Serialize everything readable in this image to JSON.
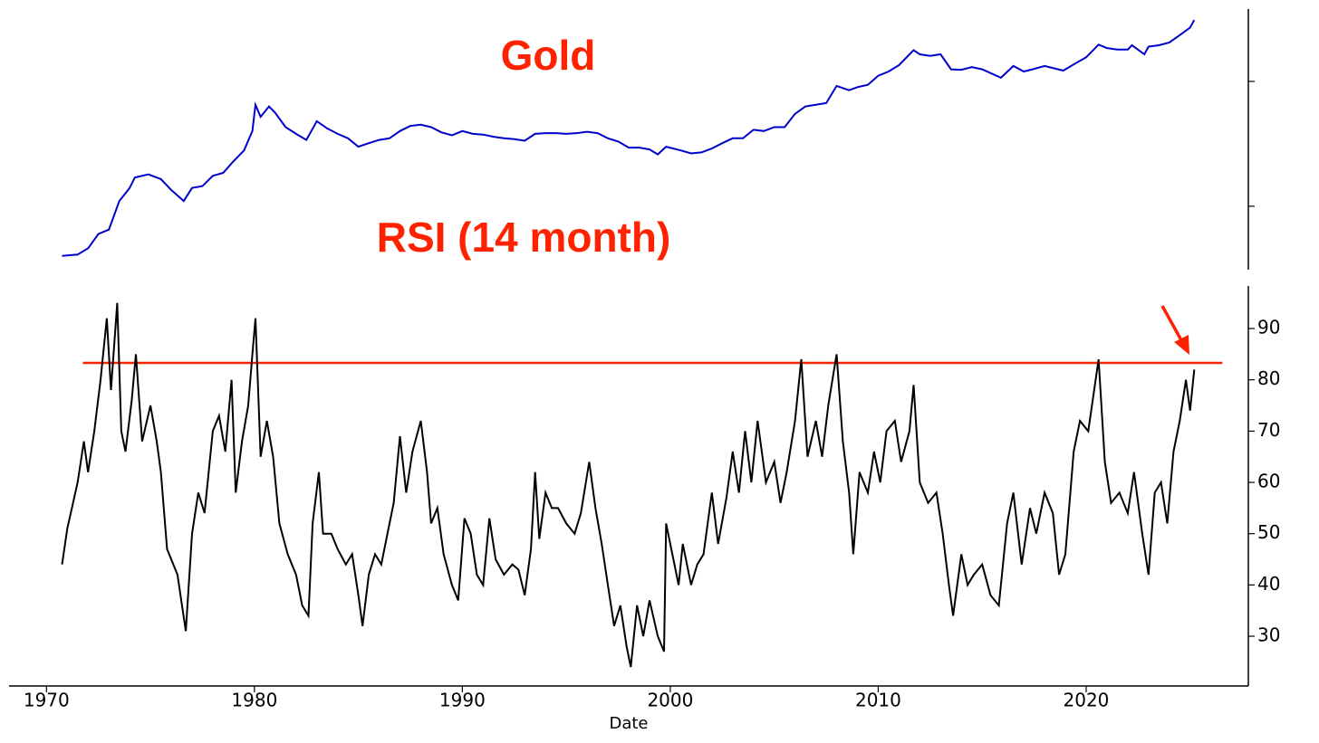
{
  "chart_data": [
    {
      "type": "line",
      "title": "Gold",
      "log": true,
      "xlim": [
        1968.2,
        2027.8
      ],
      "ylim": [
        31,
        3800
      ],
      "yticks": [
        100,
        1000
      ],
      "x": [
        1970.75,
        1971.5,
        1972,
        1972.5,
        1973,
        1973.5,
        1974,
        1974.25,
        1974.9,
        1975.5,
        1976.0,
        1976.6,
        1977,
        1977.5,
        1978,
        1978.5,
        1979,
        1979.5,
        1979.9,
        1980.05,
        1980.3,
        1980.7,
        1981,
        1981.5,
        1982,
        1982.5,
        1983,
        1983.5,
        1984,
        1984.5,
        1985,
        1985.5,
        1986,
        1986.5,
        1987,
        1987.5,
        1988,
        1988.5,
        1989,
        1989.5,
        1990,
        1990.5,
        1991,
        1991.5,
        1992,
        1992.5,
        1993,
        1993.5,
        1994,
        1994.5,
        1995,
        1995.5,
        1996,
        1996.5,
        1997,
        1997.5,
        1998,
        1998.5,
        1999,
        1999.4,
        1999.8,
        2000.5,
        2001,
        2001.5,
        2002,
        2002.5,
        2003,
        2003.5,
        2004,
        2004.5,
        2005,
        2005.5,
        2006,
        2006.5,
        2007,
        2007.5,
        2008,
        2008.6,
        2009,
        2009.5,
        2010,
        2010.5,
        2011,
        2011.7,
        2012,
        2012.5,
        2013,
        2013.5,
        2014,
        2014.5,
        2015,
        2015.9,
        2016.5,
        2017,
        2017.5,
        2018,
        2018.9,
        2019.5,
        2020,
        2020.6,
        2021,
        2021.5,
        2022,
        2022.2,
        2022.8,
        2023,
        2023.5,
        2024,
        2024.5,
        2025,
        2025.2
      ],
      "series": [
        {
          "color": "#0000cc",
          "values": [
            40,
            41,
            46,
            60,
            65,
            110,
            140,
            170,
            180,
            165,
            135,
            110,
            140,
            145,
            175,
            185,
            230,
            280,
            400,
            650,
            520,
            630,
            560,
            430,
            380,
            340,
            480,
            420,
            380,
            350,
            300,
            320,
            340,
            350,
            400,
            440,
            450,
            430,
            390,
            370,
            400,
            380,
            375,
            360,
            350,
            345,
            335,
            380,
            385,
            385,
            380,
            385,
            395,
            385,
            350,
            330,
            295,
            295,
            285,
            260,
            300,
            280,
            265,
            270,
            290,
            320,
            350,
            350,
            410,
            400,
            430,
            430,
            550,
            630,
            650,
            670,
            920,
            850,
            900,
            940,
            1110,
            1200,
            1350,
            1780,
            1650,
            1600,
            1650,
            1250,
            1240,
            1300,
            1250,
            1070,
            1330,
            1200,
            1260,
            1330,
            1220,
            1400,
            1560,
            1970,
            1850,
            1800,
            1800,
            1950,
            1650,
            1900,
            1950,
            2050,
            2350,
            2700,
            3100
          ]
        }
      ]
    },
    {
      "type": "line",
      "title": "RSI (14 month)",
      "xlabel": "Date",
      "xlim": [
        1968.2,
        2027.8
      ],
      "xticks": [
        1970,
        1980,
        1990,
        2000,
        2010,
        2020
      ],
      "ylim": [
        20.3,
        98.3
      ],
      "yticks": [
        30,
        40,
        50,
        60,
        70,
        80,
        90
      ],
      "hline": {
        "y": 83.3,
        "x": [
          1971.75,
          2026.55
        ],
        "color": "#ff2200"
      },
      "x": [
        1970.75,
        1971,
        1971.5,
        1971.8,
        1972,
        1972.3,
        1972.6,
        1972.9,
        1973.1,
        1973.4,
        1973.6,
        1973.8,
        1974.1,
        1974.3,
        1974.6,
        1975,
        1975.3,
        1975.5,
        1975.8,
        1976,
        1976.3,
        1976.7,
        1977,
        1977.3,
        1977.6,
        1978,
        1978.3,
        1978.6,
        1978.9,
        1979.1,
        1979.4,
        1979.7,
        1979.9,
        1980.05,
        1980.3,
        1980.6,
        1980.9,
        1981.2,
        1981.6,
        1982,
        1982.3,
        1982.6,
        1982.8,
        1983.1,
        1983.3,
        1983.7,
        1984,
        1984.4,
        1984.7,
        1985,
        1985.2,
        1985.5,
        1985.8,
        1986.1,
        1986.4,
        1986.7,
        1987,
        1987.3,
        1987.6,
        1988,
        1988.3,
        1988.5,
        1988.8,
        1989.1,
        1989.5,
        1989.8,
        1990.1,
        1990.4,
        1990.7,
        1991,
        1991.3,
        1991.6,
        1992,
        1992.4,
        1992.7,
        1993,
        1993.3,
        1993.5,
        1993.7,
        1994,
        1994.3,
        1994.6,
        1995,
        1995.4,
        1995.7,
        1996.1,
        1996.4,
        1996.7,
        1997,
        1997.3,
        1997.6,
        1997.9,
        1998.1,
        1998.4,
        1998.7,
        1999,
        1999.4,
        1999.7,
        1999.8,
        2000.1,
        2000.4,
        2000.6,
        2001,
        2001.3,
        2001.6,
        2002,
        2002.3,
        2002.7,
        2003,
        2003.3,
        2003.6,
        2003.9,
        2004.2,
        2004.6,
        2005,
        2005.3,
        2005.6,
        2006,
        2006.3,
        2006.6,
        2007,
        2007.3,
        2007.6,
        2008,
        2008.3,
        2008.6,
        2008.8,
        2009.1,
        2009.5,
        2009.8,
        2010.1,
        2010.4,
        2010.8,
        2011.1,
        2011.5,
        2011.7,
        2012,
        2012.4,
        2012.8,
        2013.1,
        2013.4,
        2013.6,
        2014,
        2014.3,
        2014.6,
        2015,
        2015.4,
        2015.8,
        2016.2,
        2016.5,
        2016.9,
        2017.3,
        2017.6,
        2018,
        2018.4,
        2018.7,
        2019,
        2019.4,
        2019.7,
        2020.1,
        2020.6,
        2020.9,
        2021.2,
        2021.6,
        2022,
        2022.3,
        2022.7,
        2023,
        2023.3,
        2023.6,
        2023.9,
        2024.2,
        2024.5,
        2024.8,
        2025,
        2025.2
      ],
      "series": [
        {
          "color": "#000000",
          "values": [
            44,
            51,
            60,
            68,
            62,
            70,
            80,
            92,
            78,
            95,
            70,
            66,
            76,
            85,
            68,
            75,
            68,
            62,
            47,
            45,
            42,
            31,
            50,
            58,
            54,
            70,
            73,
            66,
            80,
            58,
            68,
            75,
            85,
            92,
            65,
            72,
            65,
            52,
            46,
            42,
            36,
            34,
            52,
            62,
            50,
            50,
            47,
            44,
            46,
            38,
            32,
            42,
            46,
            44,
            50,
            56,
            69,
            58,
            66,
            72,
            62,
            52,
            55,
            46,
            40,
            37,
            53,
            50,
            42,
            40,
            53,
            45,
            42,
            44,
            43,
            38,
            47,
            62,
            49,
            58,
            55,
            55,
            52,
            50,
            54,
            64,
            55,
            48,
            40,
            32,
            36,
            28,
            24,
            36,
            30,
            37,
            30,
            27,
            52,
            46,
            40,
            48,
            40,
            44,
            46,
            58,
            48,
            57,
            66,
            58,
            70,
            60,
            72,
            60,
            64,
            56,
            62,
            72,
            84,
            65,
            72,
            65,
            75,
            85,
            68,
            58,
            46,
            62,
            58,
            66,
            60,
            70,
            72,
            64,
            70,
            79,
            60,
            56,
            58,
            50,
            40,
            34,
            46,
            40,
            42,
            44,
            38,
            36,
            52,
            58,
            44,
            55,
            50,
            58,
            54,
            42,
            46,
            66,
            72,
            70,
            84,
            64,
            56,
            58,
            54,
            62,
            50,
            42,
            58,
            60,
            52,
            66,
            72,
            80,
            74,
            82
          ]
        }
      ]
    }
  ]
}
